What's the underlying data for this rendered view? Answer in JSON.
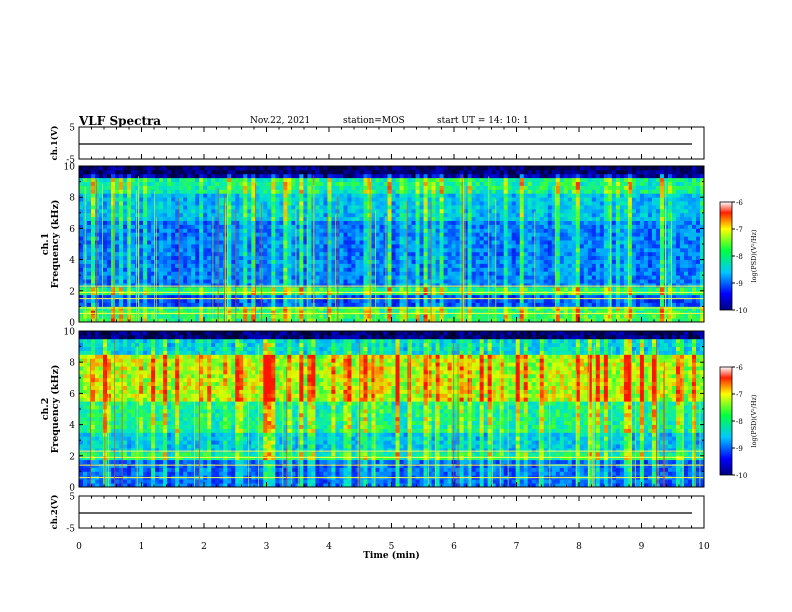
{
  "header": {
    "title": "VLF Spectra",
    "date": "Nov.22, 2021",
    "station": "station=MOS",
    "start_ut": "start UT =  14: 10: 1"
  },
  "chart_data": [
    {
      "type": "line",
      "panel": "ch1-waveform",
      "ylabel": "ch.1(V)",
      "ylim": [
        -5,
        5
      ],
      "yticks": [
        5,
        -5
      ],
      "x": [
        0,
        10
      ],
      "series": [
        {
          "values": [
            0,
            0
          ]
        }
      ]
    },
    {
      "type": "heatmap",
      "panel": "ch1-spectrogram",
      "ylabel": [
        "ch.1",
        "Frequency (kHz)"
      ],
      "ylim": [
        0,
        10
      ],
      "yticks": [
        0,
        2,
        4,
        6,
        8,
        10
      ],
      "xlim": [
        0,
        10
      ],
      "colorbar": {
        "label": "log(PSD)(V²/Hz)",
        "ticks": [
          -6,
          -7,
          -8,
          -9,
          -10
        ],
        "range": [
          -10,
          -6
        ]
      }
    },
    {
      "type": "heatmap",
      "panel": "ch2-spectrogram",
      "ylabel": [
        "ch.2",
        "Frequency (kHz)"
      ],
      "ylim": [
        0,
        10
      ],
      "yticks": [
        0,
        2,
        4,
        6,
        8,
        10
      ],
      "xlim": [
        0,
        10
      ],
      "colorbar": {
        "label": "log(PSD)(V²/Hz)",
        "ticks": [
          -6,
          -7,
          -8,
          -9,
          -10
        ],
        "range": [
          -10,
          -6
        ]
      }
    },
    {
      "type": "line",
      "panel": "ch2-waveform",
      "ylabel": "ch.2(V)",
      "ylim": [
        -5,
        5
      ],
      "yticks": [
        5,
        -5
      ],
      "x": [
        0,
        10
      ],
      "series": [
        {
          "values": [
            0,
            0
          ]
        }
      ]
    }
  ],
  "xaxis": {
    "label": "Time (min)",
    "ticks": [
      0,
      1,
      2,
      3,
      4,
      5,
      6,
      7,
      8,
      9,
      10
    ],
    "tick_labels": [
      "0",
      "1",
      "2",
      "3",
      "4",
      "5",
      "6",
      "7",
      "8",
      "9",
      "10"
    ]
  },
  "colors": {
    "background_top": "#000030",
    "dark_blue": "#0000b4",
    "blue": "#0032ff",
    "cyan": "#00c8ff",
    "green": "#32ff32",
    "yellow": "#ffff00",
    "red": "#ff2000"
  }
}
